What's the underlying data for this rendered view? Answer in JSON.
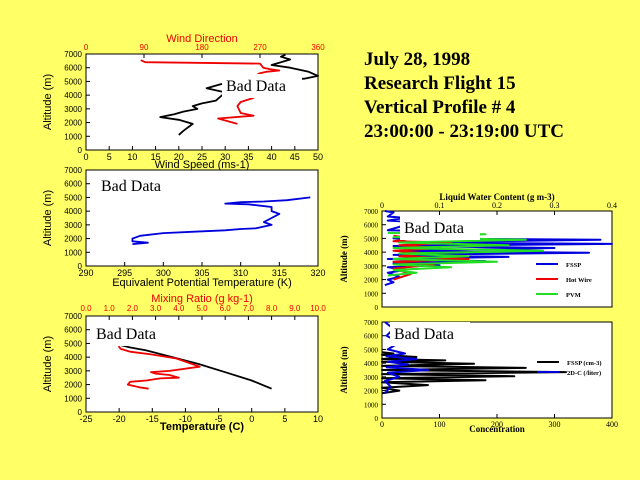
{
  "flight_info": {
    "date": "July 28, 1998",
    "flight": "Research Flight 15",
    "profile": "Vertical Profile # 4",
    "time": "23:00:00 - 23:19:00 UTC"
  },
  "colors": {
    "background": "#ffff66",
    "red": "#ee0000",
    "blue": "#0000dd",
    "green": "#22dd22",
    "black": "#000000"
  },
  "chart_data": [
    {
      "id": "wind",
      "type": "line",
      "title": "Wind Direction",
      "xlabel": "Wind Speed (ms-1)",
      "ylabel": "Altitude (m)",
      "annotation": "Bad Data",
      "x_ticks": [
        "0",
        "5",
        "10",
        "15",
        "20",
        "25",
        "30",
        "35",
        "40",
        "45",
        "50"
      ],
      "x_top_ticks": [
        "0",
        "90",
        "180",
        "270",
        "360"
      ],
      "y_ticks": [
        "0",
        "1000",
        "2000",
        "3000",
        "4000",
        "5000",
        "6000",
        "7000"
      ],
      "xlim": [
        0,
        50
      ],
      "x2lim": [
        0,
        360
      ],
      "ylim": [
        0,
        7000
      ],
      "series": [
        {
          "name": "Wind Speed",
          "color": "#000000",
          "axis": "bottom",
          "x": [
            43,
            42,
            44,
            40,
            44,
            48,
            50,
            47,
            35,
            29,
            26,
            30,
            29,
            28,
            25,
            23,
            24,
            21,
            19,
            16,
            20,
            23,
            21,
            20
          ],
          "y": [
            6950,
            6800,
            6600,
            6200,
            6000,
            5700,
            5400,
            5200,
            5000,
            4800,
            4500,
            4200,
            3900,
            3600,
            3400,
            3200,
            3000,
            2800,
            2600,
            2400,
            2200,
            1900,
            1400,
            1100
          ]
        },
        {
          "name": "Wind Direction",
          "color": "#ee0000",
          "axis": "top",
          "x": [
            85,
            92,
            270,
            275,
            285,
            300,
            280,
            270,
            262,
            268,
            265,
            260,
            240,
            235,
            240,
            260,
            205,
            235
          ],
          "y": [
            6550,
            6400,
            6300,
            6000,
            5900,
            5800,
            5700,
            5600,
            5400,
            5000,
            4500,
            3800,
            3500,
            3200,
            2700,
            2500,
            2300,
            1900
          ]
        }
      ]
    },
    {
      "id": "theta-e",
      "type": "line",
      "xlabel": "Equivalent Potential Temperature (K)",
      "ylabel": "Altitude (m)",
      "annotation": "Bad Data",
      "x_ticks": [
        "290",
        "295",
        "300",
        "305",
        "310",
        "315",
        "320"
      ],
      "y_ticks": [
        "0",
        "1000",
        "2000",
        "3000",
        "4000",
        "5000",
        "6000",
        "7000"
      ],
      "xlim": [
        290,
        320
      ],
      "ylim": [
        0,
        7000
      ],
      "series": [
        {
          "name": "Theta-e",
          "color": "#0000dd",
          "x": [
            319,
            316,
            313,
            310,
            309,
            308,
            311,
            314,
            314,
            315,
            314,
            313,
            314,
            312,
            310,
            308,
            304,
            300,
            297,
            296,
            296,
            298,
            296
          ],
          "y": [
            5000,
            4800,
            4700,
            4650,
            4600,
            4550,
            4500,
            4300,
            4000,
            3800,
            3500,
            3200,
            3000,
            2750,
            2700,
            2600,
            2500,
            2400,
            2200,
            2000,
            1800,
            1700,
            1600
          ]
        }
      ]
    },
    {
      "id": "temp-mix",
      "type": "line",
      "title": "Mixing Ratio (g kg-1)",
      "xlabel": "Temperature (C)",
      "ylabel": "Altitude (m)",
      "annotation": "Bad Data",
      "x_ticks": [
        "-25",
        "-20",
        "-15",
        "-10",
        "-5",
        "0",
        "5",
        "10"
      ],
      "x_top_ticks": [
        "0.0",
        "1.0",
        "2.0",
        "3.0",
        "4.0",
        "5.0",
        "6.0",
        "7.0",
        "8.0",
        "9.0",
        "10.0"
      ],
      "y_ticks": [
        "0",
        "1000",
        "2000",
        "3000",
        "4000",
        "5000",
        "6000",
        "7000"
      ],
      "xlim": [
        -25,
        10
      ],
      "x2lim": [
        0,
        10
      ],
      "ylim": [
        0,
        7000
      ],
      "series": [
        {
          "name": "Temperature",
          "color": "#000000",
          "axis": "bottom",
          "x": [
            -20,
            -18.3,
            -16,
            -12,
            -8,
            -4,
            0,
            3
          ],
          "y": [
            4900,
            4700,
            4500,
            4000,
            3500,
            2900,
            2300,
            1700
          ]
        },
        {
          "name": "Mixing Ratio",
          "color": "#ee0000",
          "axis": "top",
          "x": [
            1.4,
            1.5,
            1.9,
            2.8,
            3.9,
            4.9,
            3.6,
            2.8,
            3.0,
            3.6,
            4.0,
            3.2,
            2.6,
            1.9,
            1.8,
            2.3,
            2.7
          ],
          "y": [
            4800,
            4600,
            4400,
            4200,
            3900,
            3300,
            3000,
            2900,
            2800,
            2700,
            2500,
            2450,
            2300,
            2200,
            2000,
            1800,
            1700
          ]
        }
      ]
    },
    {
      "id": "lwc",
      "type": "line",
      "title": "Liquid Water Content (g m-3)",
      "ylabel": "Altitude (m)",
      "annotation": "Bad Data",
      "x_ticks": [
        "0",
        "0.1",
        "0.2",
        "0.3",
        "0.4"
      ],
      "y_ticks": [
        "0",
        "1000",
        "2000",
        "3000",
        "4000",
        "5000",
        "6000",
        "7000"
      ],
      "xlim": [
        0,
        0.4
      ],
      "ylim": [
        0,
        7000
      ],
      "legend": [
        "FSSP",
        "Hot Wire",
        "PVM"
      ],
      "series": [
        {
          "name": "FSSP",
          "color": "#0000dd",
          "x": [
            0.005,
            0.02,
            0.01,
            0.04,
            0.01,
            0.06,
            0.01,
            0.12,
            0.02,
            0.38,
            0.03,
            0.4,
            0.02,
            0.3,
            0.03,
            0.36,
            0.02,
            0.22,
            0.01,
            0.18,
            0.02,
            0.1,
            0.01,
            0.04,
            0.01,
            0.03,
            0.01,
            0.02,
            0.005
          ],
          "y": [
            7000,
            6900,
            6600,
            6500,
            6300,
            6200,
            5600,
            5500,
            5000,
            4900,
            4700,
            4600,
            4450,
            4300,
            4100,
            3950,
            3800,
            3650,
            3500,
            3350,
            3200,
            3050,
            2900,
            2700,
            2500,
            2200,
            2000,
            1800,
            1600
          ]
        },
        {
          "name": "Hot Wire",
          "color": "#ee0000",
          "x": [
            0.02,
            0.05,
            0.02,
            0.12,
            0.03,
            0.1,
            0.02,
            0.08,
            0.03,
            0.15,
            0.02,
            0.09,
            0.02,
            0.05,
            0.02
          ],
          "y": [
            5200,
            5000,
            4800,
            4700,
            4500,
            4300,
            4100,
            3900,
            3700,
            3500,
            3300,
            3100,
            2800,
            2400,
            2000
          ]
        },
        {
          "name": "PVM",
          "color": "#22dd22",
          "x": [
            0.01,
            0.18,
            0.02,
            0.25,
            0.03,
            0.22,
            0.02,
            0.28,
            0.03,
            0.15,
            0.02,
            0.2,
            0.02,
            0.12,
            0.02,
            0.06,
            0.01
          ],
          "y": [
            5400,
            5300,
            5100,
            4900,
            4700,
            4500,
            4300,
            4100,
            3900,
            3700,
            3500,
            3300,
            3100,
            2900,
            2700,
            2500,
            2300
          ]
        }
      ]
    },
    {
      "id": "conc",
      "type": "line",
      "xlabel": "Concentration",
      "ylabel": "Altitude (m)",
      "annotation": "Bad Data",
      "x_ticks": [
        "0",
        "100",
        "200",
        "300",
        "400"
      ],
      "y_ticks": [
        "0",
        "1000",
        "2000",
        "3000",
        "4000",
        "5000",
        "6000",
        "7000"
      ],
      "xlim": [
        0,
        400
      ],
      "ylim": [
        0,
        7000
      ],
      "legend": [
        "FSSP (cm-3)",
        "2D-C (/liter)"
      ],
      "series": [
        {
          "name": "FSSP (cm-3)",
          "color": "#000000",
          "x": [
            0,
            20,
            0,
            60,
            0,
            110,
            0,
            160,
            0,
            250,
            0,
            320,
            0,
            230,
            0,
            180,
            0,
            80,
            0,
            30,
            0
          ],
          "y": [
            4800,
            4700,
            4600,
            4450,
            4300,
            4200,
            4100,
            3950,
            3800,
            3650,
            3500,
            3350,
            3200,
            3050,
            2900,
            2750,
            2600,
            2400,
            2200,
            2000,
            1800
          ]
        },
        {
          "name": "2D-C (/liter)",
          "color": "#0000dd",
          "x": [
            5,
            20,
            8,
            30,
            10,
            40,
            8,
            60,
            10,
            45,
            8,
            80,
            10,
            30,
            5,
            15,
            5
          ],
          "y": [
            7000,
            6500,
            6000,
            5500,
            5000,
            4700,
            4500,
            4300,
            4100,
            3900,
            3700,
            3500,
            3300,
            3000,
            2700,
            2300,
            1800
          ]
        }
      ]
    }
  ]
}
